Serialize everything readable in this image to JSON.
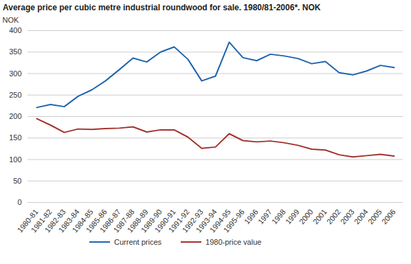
{
  "chart_data": {
    "type": "line",
    "title": "Average price per cubic metre industrial roundwood for sale. 1980/81-2006*. NOK",
    "y_label": "NOK",
    "categories": [
      "1980-81",
      "1981-82",
      "1982-83",
      "1983-84",
      "1984-85",
      "1985-86",
      "1986-87",
      "1987-88",
      "1988-89",
      "1989-90",
      "1990-91",
      "1991-92",
      "1992-93",
      "1993-94",
      "1994-95",
      "1995-96",
      "1996",
      "1997",
      "1998",
      "1999",
      "2000",
      "2001",
      "2002",
      "2003",
      "2004",
      "2005",
      "2006"
    ],
    "series": [
      {
        "name": "Current prices",
        "color": "#1f63ad",
        "values": [
          221,
          228,
          223,
          247,
          262,
          283,
          309,
          336,
          327,
          350,
          362,
          333,
          283,
          294,
          373,
          337,
          330,
          345,
          341,
          335,
          323,
          328,
          302,
          297,
          306,
          319,
          314
        ]
      },
      {
        "name": "1980-price value",
        "color": "#a3312c",
        "values": [
          195,
          180,
          163,
          171,
          170,
          172,
          173,
          176,
          164,
          169,
          169,
          152,
          126,
          129,
          160,
          144,
          141,
          143,
          139,
          133,
          124,
          122,
          111,
          106,
          109,
          112,
          108
        ]
      }
    ],
    "ylim": [
      0,
      400
    ],
    "yticks": [
      0,
      50,
      100,
      150,
      200,
      250,
      300,
      350,
      400
    ],
    "grid": true,
    "legend": "bottom"
  }
}
